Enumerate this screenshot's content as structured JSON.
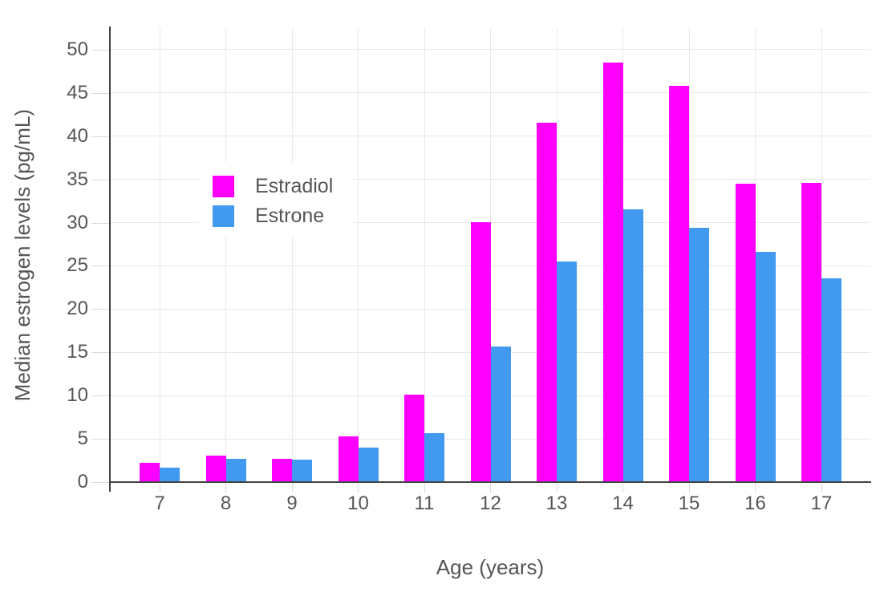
{
  "chart_data": {
    "type": "bar",
    "categories": [
      7,
      8,
      9,
      10,
      11,
      12,
      13,
      14,
      15,
      16,
      17
    ],
    "series": [
      {
        "name": "Estradiol",
        "color": "#FF00FF",
        "values": [
          2.2,
          3.1,
          2.7,
          5.3,
          10.1,
          30.1,
          41.6,
          48.5,
          45.8,
          34.5,
          34.6
        ]
      },
      {
        "name": "Estrone",
        "color": "#4299F0",
        "values": [
          1.7,
          2.7,
          2.6,
          4.0,
          5.7,
          15.7,
          25.5,
          31.5,
          29.4,
          26.6,
          23.6
        ]
      }
    ],
    "title": "",
    "xlabel": "Age (years)",
    "ylabel": "Median estrogen levels (pg/mL)",
    "ylim": [
      0,
      52.5
    ],
    "yticks": [
      0,
      5,
      10,
      15,
      20,
      25,
      30,
      35,
      40,
      45,
      50
    ],
    "grid": true,
    "legend_position": "inside-upper-left"
  },
  "colors": {
    "background": "#FFFFFF",
    "axis_line": "#444444",
    "grid_line": "#E8E8E8",
    "tick_mark": "#D9D9D9",
    "text": "#555555"
  }
}
